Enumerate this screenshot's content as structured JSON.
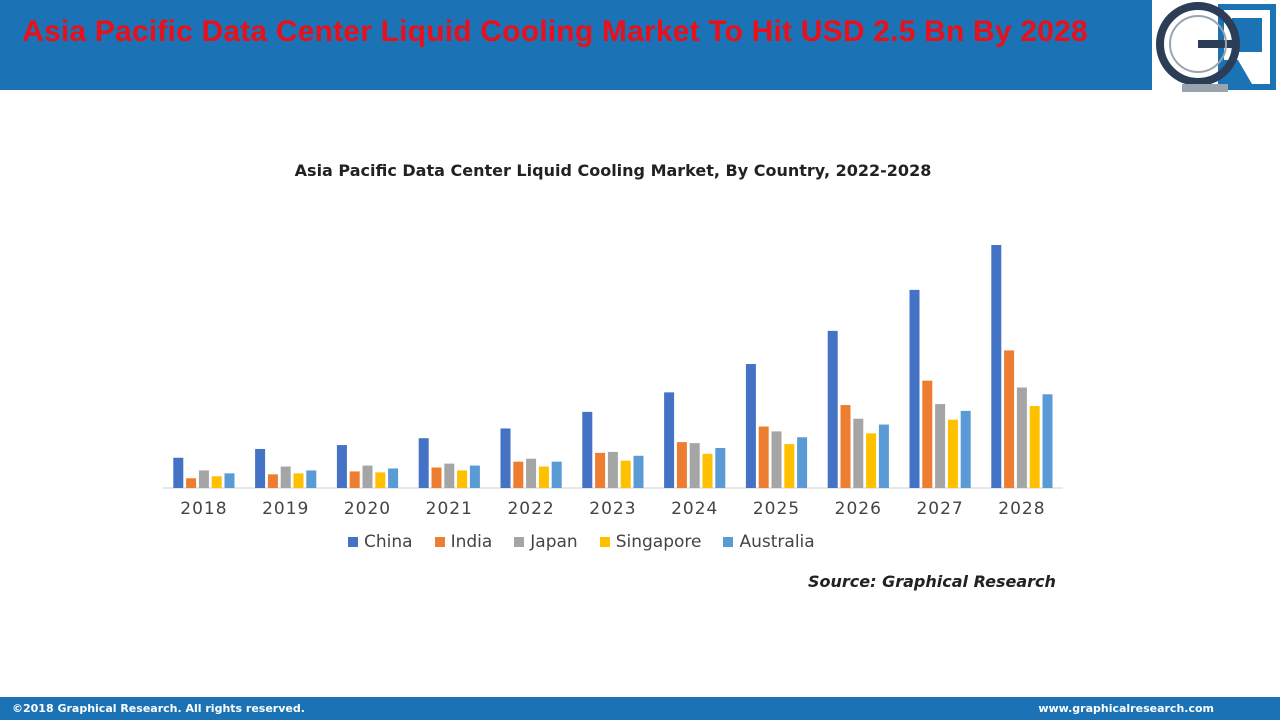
{
  "header": {
    "title": "Asia Pacific Data Center Liquid Cooling Market To Hit USD 2.5 Bn By 2028"
  },
  "logo": {
    "text": "GR"
  },
  "colors": {
    "header_bg": "#1b73b5",
    "title_red": "#e8101a",
    "China": "#4472c4",
    "India": "#ed7d31",
    "Japan": "#a5a5a5",
    "Singapore": "#ffc000",
    "Australia": "#5b9bd5"
  },
  "chart_data": {
    "type": "bar",
    "title": "Asia Pacific Data Center Liquid Cooling Market, By Country, 2022-2028",
    "xlabel": "",
    "ylabel": "",
    "ylim": [
      0,
      250
    ],
    "grid": false,
    "legend_position": "bottom",
    "categories": [
      "2018",
      "2019",
      "2020",
      "2021",
      "2022",
      "2023",
      "2024",
      "2025",
      "2026",
      "2027",
      "2028"
    ],
    "series": [
      {
        "name": "China",
        "values": [
          31,
          40,
          44,
          51,
          61,
          78,
          98,
          127,
          161,
          203,
          249
        ]
      },
      {
        "name": "India",
        "values": [
          10,
          14,
          17,
          21,
          27,
          36,
          47,
          63,
          85,
          110,
          141
        ]
      },
      {
        "name": "Japan",
        "values": [
          18,
          22,
          23,
          25,
          30,
          37,
          46,
          58,
          71,
          86,
          103
        ]
      },
      {
        "name": "Singapore",
        "values": [
          12,
          15,
          16,
          18,
          22,
          28,
          35,
          45,
          56,
          70,
          84
        ]
      },
      {
        "name": "Australia",
        "values": [
          15,
          18,
          20,
          23,
          27,
          33,
          41,
          52,
          65,
          79,
          96
        ]
      }
    ]
  },
  "source": "Source: Graphical Research",
  "footer": {
    "copyright": "©2018 Graphical Research. All rights reserved.",
    "website": "www.graphicalresearch.com"
  }
}
